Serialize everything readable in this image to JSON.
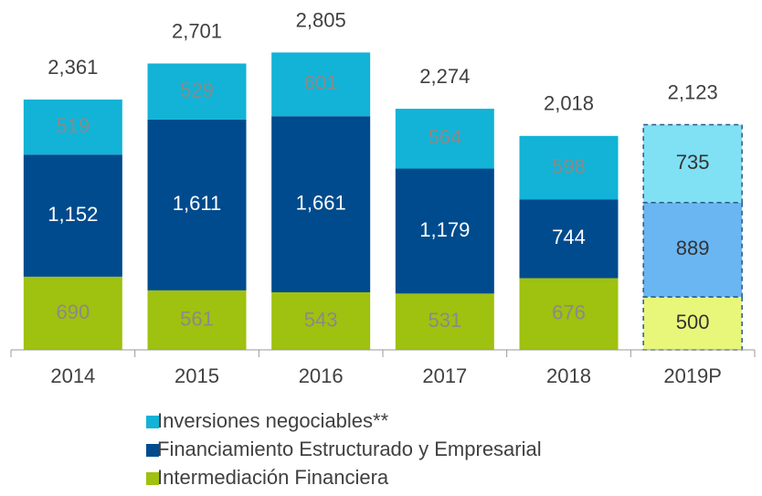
{
  "chart_data": {
    "type": "stacked_bar",
    "categories": [
      "2014",
      "2015",
      "2016",
      "2017",
      "2018",
      "2019P"
    ],
    "series": [
      {
        "name": "Intermediación Financiera",
        "color": "#9fc10f",
        "colors": [
          "#9fc10f",
          "#9fc10f",
          "#9fc10f",
          "#9fc10f",
          "#9fc10f",
          "#e8f77a"
        ],
        "values": [
          690,
          561,
          543,
          531,
          676,
          500
        ]
      },
      {
        "name": "Financiamiento Estructurado y Empresarial",
        "color": "#004b8d",
        "colors": [
          "#004b8d",
          "#004b8d",
          "#004b8d",
          "#004b8d",
          "#004b8d",
          "#6ab6f2"
        ],
        "values": [
          1152,
          1611,
          1661,
          1179,
          744,
          889
        ],
        "value_labels": [
          "1,152",
          "1,611",
          "1,661",
          "1,179",
          "744",
          "889"
        ]
      },
      {
        "name": "Inversiones negociables**",
        "color": "#12b3d6",
        "colors": [
          "#12b3d6",
          "#12b3d6",
          "#12b3d6",
          "#12b3d6",
          "#12b3d6",
          "#80e0f4"
        ],
        "values": [
          519,
          529,
          601,
          564,
          598,
          735
        ]
      }
    ],
    "totals": [
      2361,
      2701,
      2805,
      2274,
      2018,
      2123
    ],
    "total_labels": [
      "2,361",
      "2,701",
      "2,805",
      "2,274",
      "2,018",
      "2,123"
    ],
    "dashed": [
      false,
      false,
      false,
      false,
      false,
      true
    ],
    "ylim": [
      0,
      3300
    ]
  }
}
